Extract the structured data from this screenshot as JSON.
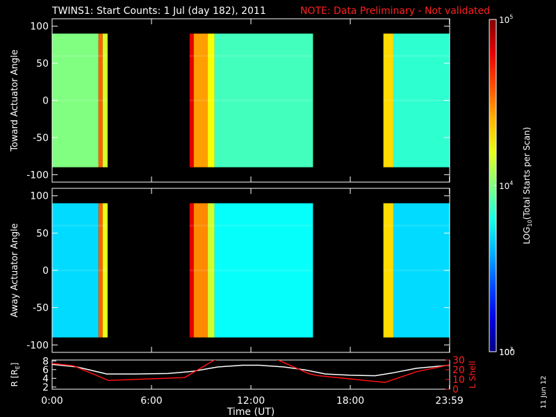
{
  "title": {
    "main": "TWINS1: Start Counts:  1 Jul (day 182), 2011",
    "note": "NOTE: Data Preliminary - Not validated",
    "note_color": "#ff2020"
  },
  "stamp": "11 Jun 12",
  "chart_data": [
    {
      "type": "heatmap",
      "ylabel": "Toward Actuator Angle",
      "ylim": [
        -110,
        110
      ],
      "yticks": [
        -100,
        -50,
        0,
        50,
        100
      ],
      "xlim_hours": [
        0,
        24
      ],
      "angle_range": [
        -90,
        90
      ],
      "data_segments_hours": [
        [
          0,
          3.35
        ],
        [
          8.3,
          15.75
        ],
        [
          20.0,
          24.0
        ]
      ],
      "color_regions": [
        {
          "from": 0.0,
          "to": 2.8,
          "level": 0.5
        },
        {
          "from": 2.8,
          "to": 3.05,
          "level": 0.78
        },
        {
          "from": 3.05,
          "to": 3.35,
          "level": 0.58
        },
        {
          "from": 8.3,
          "to": 8.55,
          "level": 0.9
        },
        {
          "from": 8.55,
          "to": 9.4,
          "level": 0.72
        },
        {
          "from": 9.4,
          "to": 9.8,
          "level": 0.62
        },
        {
          "from": 9.8,
          "to": 15.75,
          "level": 0.44
        },
        {
          "from": 20.0,
          "to": 20.6,
          "level": 0.66
        },
        {
          "from": 20.6,
          "to": 24.0,
          "level": 0.42
        }
      ]
    },
    {
      "type": "heatmap",
      "ylabel": "Away Actuator Angle",
      "ylim": [
        -110,
        110
      ],
      "yticks": [
        -100,
        -50,
        0,
        50,
        100
      ],
      "xlim_hours": [
        0,
        24
      ],
      "angle_range": [
        -90,
        90
      ],
      "data_segments_hours": [
        [
          0,
          3.35
        ],
        [
          8.3,
          15.75
        ],
        [
          20.0,
          24.0
        ]
      ],
      "color_regions": [
        {
          "from": 0.0,
          "to": 2.8,
          "level": 0.34
        },
        {
          "from": 2.8,
          "to": 3.05,
          "level": 0.78
        },
        {
          "from": 3.05,
          "to": 3.35,
          "level": 0.6
        },
        {
          "from": 8.3,
          "to": 8.55,
          "level": 0.9
        },
        {
          "from": 8.55,
          "to": 9.4,
          "level": 0.74
        },
        {
          "from": 9.4,
          "to": 9.8,
          "level": 0.58
        },
        {
          "from": 9.8,
          "to": 15.75,
          "level": 0.38
        },
        {
          "from": 20.0,
          "to": 20.6,
          "level": 0.66
        },
        {
          "from": 20.6,
          "to": 24.0,
          "level": 0.34
        }
      ]
    },
    {
      "type": "line",
      "ylabel": "R [R",
      "ylabel_sub": "E",
      "ylabel_close": "]",
      "y2label": "L Shell",
      "ylim": [
        1.5,
        8.2
      ],
      "yticks": [
        2,
        4,
        6,
        8
      ],
      "y2lim": [
        0,
        30
      ],
      "y2ticks": [
        0,
        10,
        20,
        30
      ],
      "xlabel": "Time (UT)",
      "xticks_hours": [
        0,
        6,
        12,
        18,
        23.983
      ],
      "xtick_labels": [
        "0:00",
        "6:00",
        "12:00",
        "18:00",
        "23:59"
      ],
      "series": [
        {
          "color": "#ffffff",
          "axis": "left",
          "x": [
            0,
            1.5,
            3.3,
            5.0,
            7.0,
            8.5,
            10.0,
            11.5,
            12.5,
            14.0,
            15.3,
            16.5,
            18.0,
            19.5,
            20.5,
            22.0,
            23.98
          ],
          "y": [
            7.2,
            6.6,
            5.0,
            5.0,
            5.1,
            5.6,
            6.6,
            7.0,
            7.0,
            6.6,
            5.9,
            5.0,
            4.7,
            4.6,
            5.2,
            6.3,
            7.0
          ]
        },
        {
          "color": "#ff1010",
          "axis": "right",
          "x": [
            0,
            1.3,
            3.4,
            8.0,
            9.8,
            10.0
          ],
          "y": [
            26.5,
            24,
            9,
            12,
            30,
            31
          ]
        },
        {
          "color": "#ff1010",
          "axis": "right",
          "x": [
            13.5,
            15.5,
            16.0,
            20.1,
            22.0,
            23.98
          ],
          "y": [
            31,
            16,
            14,
            7,
            18,
            25
          ]
        }
      ]
    }
  ],
  "colorbar": {
    "label": "LOG",
    "label_sub": "10",
    "label_rest": "(Total Starts per Scan)",
    "tick_labels": [
      {
        "level": 1.0,
        "base": "10",
        "exp": "5"
      },
      {
        "level": 0.5,
        "base": "10",
        "exp": "4"
      },
      {
        "level": 0.0,
        "base": "10",
        "exp": "3"
      },
      {
        "level": 0.0,
        "base": "100",
        "exp": ""
      }
    ]
  }
}
